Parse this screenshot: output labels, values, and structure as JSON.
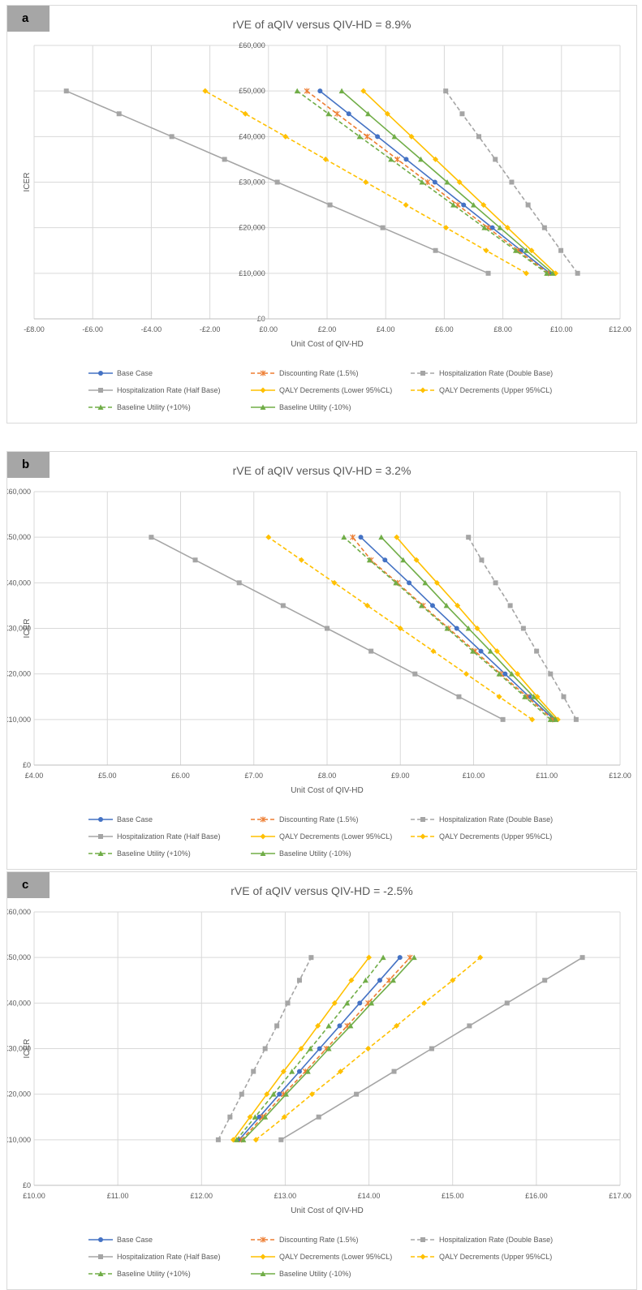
{
  "legend_entries": [
    {
      "name": "Base Case",
      "color": "#4472c4",
      "dash": "solid",
      "marker": "circle"
    },
    {
      "name": "Discounting Rate (1.5%)",
      "color": "#ed7d31",
      "dash": "dash",
      "marker": "star"
    },
    {
      "name": "Hospitalization Rate (Double Base)",
      "color": "#a5a5a5",
      "dash": "dash",
      "marker": "square"
    },
    {
      "name": "Hospitalization Rate (Half Base)",
      "color": "#a5a5a5",
      "dash": "solid",
      "marker": "square"
    },
    {
      "name": "QALY Decrements (Lower 95%CL)",
      "color": "#ffc000",
      "dash": "solid",
      "marker": "diamond"
    },
    {
      "name": "QALY Decrements (Upper 95%CL)",
      "color": "#ffc000",
      "dash": "dash",
      "marker": "diamond"
    },
    {
      "name": "Baseline Utility (+10%)",
      "color": "#70ad47",
      "dash": "dash",
      "marker": "triangle"
    },
    {
      "name": "Baseline Utility (-10%)",
      "color": "#70ad47",
      "dash": "solid",
      "marker": "triangle"
    }
  ],
  "chart_data": [
    {
      "type": "line",
      "panel_label": "a",
      "title": "rVE of aQIV versus QIV-HD = 8.9%",
      "xlabel": "Unit Cost of QIV-HD",
      "ylabel": "ICER",
      "xlim": [
        -8,
        12
      ],
      "ylim": [
        0,
        60000
      ],
      "xticks": [
        "-£8.00",
        "-£6.00",
        "-£4.00",
        "-£2.00",
        "£0.00",
        "£2.00",
        "£4.00",
        "£6.00",
        "£8.00",
        "£10.00",
        "£12.00"
      ],
      "yticks": [
        "£0",
        "£10,000",
        "£20,000",
        "£30,000",
        "£40,000",
        "£50,000",
        "£60,000"
      ],
      "y": [
        10000,
        15000,
        20000,
        25000,
        30000,
        35000,
        40000,
        45000,
        50000
      ],
      "grid": true,
      "legend_position": "bottom",
      "series": [
        {
          "name": "Base Case",
          "x": [
            9.6,
            8.62,
            7.64,
            6.66,
            5.68,
            4.7,
            3.72,
            2.74,
            1.76
          ]
        },
        {
          "name": "Discounting Rate (1.5%)",
          "x": [
            9.55,
            8.52,
            7.49,
            6.46,
            5.43,
            4.4,
            3.37,
            2.34,
            1.31
          ]
        },
        {
          "name": "Hospitalization Rate (Double Base)",
          "x": [
            10.55,
            9.98,
            9.42,
            8.86,
            8.3,
            7.74,
            7.18,
            6.61,
            6.05
          ]
        },
        {
          "name": "Hospitalization Rate (Half Base)",
          "x": [
            7.5,
            5.7,
            3.9,
            2.1,
            0.3,
            -1.5,
            -3.3,
            -5.1,
            -6.9
          ]
        },
        {
          "name": "QALY Decrements (Lower 95%CL)",
          "x": [
            9.8,
            8.98,
            8.16,
            7.34,
            6.52,
            5.7,
            4.88,
            4.06,
            3.24
          ]
        },
        {
          "name": "QALY Decrements (Upper 95%CL)",
          "x": [
            8.8,
            7.43,
            6.06,
            4.69,
            3.32,
            1.95,
            0.58,
            -0.79,
            -2.16
          ]
        },
        {
          "name": "Baseline Utility (+10%)",
          "x": [
            9.5,
            8.44,
            7.37,
            6.31,
            5.24,
            4.18,
            3.11,
            2.05,
            0.98
          ]
        },
        {
          "name": "Baseline Utility (-10%)",
          "x": [
            9.7,
            8.8,
            7.9,
            7.0,
            6.1,
            5.2,
            4.3,
            3.4,
            2.5
          ]
        }
      ]
    },
    {
      "type": "line",
      "panel_label": "b",
      "title": "rVE of aQIV versus QIV-HD = 3.2%",
      "xlabel": "Unit Cost of QIV-HD",
      "ylabel": "ICER",
      "xlim": [
        4,
        12
      ],
      "ylim": [
        0,
        60000
      ],
      "xticks": [
        "£4.00",
        "£5.00",
        "£6.00",
        "£7.00",
        "£8.00",
        "£9.00",
        "£10.00",
        "£11.00",
        "£12.00"
      ],
      "yticks": [
        "£0",
        "£10,000",
        "£20,000",
        "£30,000",
        "£40,000",
        "£50,000",
        "£60,000"
      ],
      "y": [
        10000,
        15000,
        20000,
        25000,
        30000,
        35000,
        40000,
        45000,
        50000
      ],
      "grid": true,
      "legend_position": "bottom",
      "series": [
        {
          "name": "Base Case",
          "x": [
            11.1,
            10.76,
            10.43,
            10.1,
            9.77,
            9.44,
            9.12,
            8.79,
            8.46
          ]
        },
        {
          "name": "Discounting Rate (1.5%)",
          "x": [
            11.08,
            10.73,
            10.37,
            10.02,
            9.66,
            9.31,
            8.96,
            8.6,
            8.35
          ]
        },
        {
          "name": "Hospitalization Rate (Double Base)",
          "x": [
            11.4,
            11.23,
            11.05,
            10.86,
            10.68,
            10.5,
            10.3,
            10.11,
            9.93
          ]
        },
        {
          "name": "Hospitalization Rate (Half Base)",
          "x": [
            10.4,
            9.8,
            9.2,
            8.6,
            8.0,
            7.4,
            6.8,
            6.2,
            5.6
          ]
        },
        {
          "name": "QALY Decrements (Lower 95%CL)",
          "x": [
            11.15,
            10.87,
            10.6,
            10.32,
            10.05,
            9.78,
            9.5,
            9.22,
            8.95
          ]
        },
        {
          "name": "QALY Decrements (Upper 95%CL)",
          "x": [
            10.8,
            10.35,
            9.9,
            9.45,
            9.0,
            8.55,
            8.1,
            7.65,
            7.2
          ]
        },
        {
          "name": "Baseline Utility (+10%)",
          "x": [
            11.05,
            10.7,
            10.35,
            9.99,
            9.64,
            9.29,
            8.94,
            8.58,
            8.23
          ]
        },
        {
          "name": "Baseline Utility (-10%)",
          "x": [
            11.12,
            10.82,
            10.52,
            10.23,
            9.93,
            9.63,
            9.34,
            9.04,
            8.74
          ]
        }
      ]
    },
    {
      "type": "line",
      "panel_label": "c",
      "title": "rVE of aQIV versus QIV-HD = -2.5%",
      "xlabel": "Unit Cost of QIV-HD",
      "ylabel": "ICER",
      "xlim": [
        10,
        17
      ],
      "ylim": [
        0,
        60000
      ],
      "xticks": [
        "£10.00",
        "£11.00",
        "£12.00",
        "£13.00",
        "£14.00",
        "£15.00",
        "£16.00",
        "£17.00"
      ],
      "yticks": [
        "£0",
        "£10,000",
        "£20,000",
        "£30,000",
        "£40,000",
        "£50,000",
        "£60,000"
      ],
      "y": [
        10000,
        15000,
        20000,
        25000,
        30000,
        35000,
        40000,
        45000,
        50000
      ],
      "grid": true,
      "legend_position": "bottom",
      "series": [
        {
          "name": "Base Case",
          "x": [
            12.45,
            12.69,
            12.93,
            13.17,
            13.41,
            13.65,
            13.89,
            14.13,
            14.37
          ]
        },
        {
          "name": "Discounting Rate (1.5%)",
          "x": [
            12.48,
            12.73,
            12.98,
            13.24,
            13.49,
            13.74,
            13.99,
            14.24,
            14.49
          ]
        },
        {
          "name": "Hospitalization Rate (Double Base)",
          "x": [
            12.2,
            12.34,
            12.48,
            12.62,
            12.76,
            12.9,
            13.03,
            13.17,
            13.31
          ]
        },
        {
          "name": "Hospitalization Rate (Half Base)",
          "x": [
            12.95,
            13.4,
            13.85,
            14.3,
            14.75,
            15.2,
            15.65,
            16.1,
            16.55
          ]
        },
        {
          "name": "QALY Decrements (Lower 95%CL)",
          "x": [
            12.38,
            12.58,
            12.78,
            12.98,
            13.19,
            13.39,
            13.59,
            13.79,
            14.0
          ]
        },
        {
          "name": "QALY Decrements (Upper 95%CL)",
          "x": [
            12.65,
            12.99,
            13.32,
            13.66,
            13.99,
            14.33,
            14.66,
            15.0,
            15.33
          ]
        },
        {
          "name": "Baseline Utility (+10%)",
          "x": [
            12.42,
            12.64,
            12.86,
            13.08,
            13.3,
            13.52,
            13.74,
            13.96,
            14.17
          ]
        },
        {
          "name": "Baseline Utility (-10%)",
          "x": [
            12.5,
            12.76,
            13.01,
            13.27,
            13.52,
            13.78,
            14.03,
            14.29,
            14.54
          ]
        }
      ]
    }
  ]
}
